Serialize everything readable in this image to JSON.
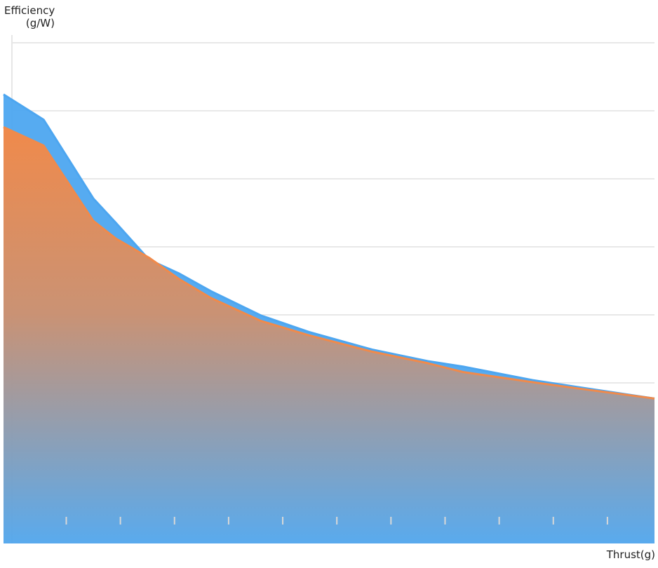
{
  "chart_data": {
    "type": "area",
    "y_label": [
      "Efficiency",
      "(g/W)"
    ],
    "x_label": "Thrust(g)",
    "x": [
      -0.16,
      0.58,
      1.5,
      1.92,
      2.53,
      3.08,
      3.67,
      4.6,
      5.48,
      6.65,
      7.68,
      8.33,
      9.62,
      10.53,
      11.87
    ],
    "series": [
      {
        "color": "#4da6f0",
        "values": [
          6.24,
          5.87,
          4.71,
          4.35,
          3.81,
          3.61,
          3.35,
          2.99,
          2.75,
          2.49,
          2.32,
          2.24,
          2.04,
          1.93,
          1.77
        ]
      },
      {
        "color": "#f08a4b",
        "values": [
          5.76,
          5.49,
          4.38,
          4.12,
          3.84,
          3.53,
          3.25,
          2.91,
          2.7,
          2.46,
          2.29,
          2.16,
          2.01,
          1.91,
          1.77
        ]
      }
    ],
    "xlim": [
      -0.16,
      11.87
    ],
    "ylim": [
      0,
      7
    ],
    "xticks": [
      1,
      2,
      3,
      4,
      5,
      6,
      7,
      8,
      9,
      10,
      11
    ],
    "yticks": [
      1,
      2,
      3,
      4,
      5,
      6,
      7
    ],
    "grid": true
  }
}
